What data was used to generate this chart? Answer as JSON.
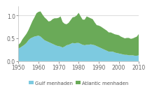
{
  "years": [
    1950,
    1951,
    1952,
    1953,
    1954,
    1955,
    1956,
    1957,
    1958,
    1959,
    1960,
    1961,
    1962,
    1963,
    1964,
    1965,
    1966,
    1967,
    1968,
    1969,
    1970,
    1971,
    1972,
    1973,
    1974,
    1975,
    1976,
    1977,
    1978,
    1979,
    1980,
    1981,
    1982,
    1983,
    1984,
    1985,
    1986,
    1987,
    1988,
    1989,
    1990,
    1991,
    1992,
    1993,
    1994,
    1995,
    1996,
    1997,
    1998,
    1999,
    2000,
    2001,
    2002,
    2003,
    2004,
    2005,
    2006,
    2007,
    2008,
    2009,
    2010
  ],
  "gulf": [
    0.28,
    0.3,
    0.33,
    0.36,
    0.4,
    0.46,
    0.5,
    0.52,
    0.54,
    0.55,
    0.56,
    0.54,
    0.5,
    0.46,
    0.44,
    0.42,
    0.4,
    0.38,
    0.36,
    0.34,
    0.33,
    0.32,
    0.3,
    0.32,
    0.35,
    0.36,
    0.38,
    0.4,
    0.39,
    0.4,
    0.4,
    0.38,
    0.36,
    0.35,
    0.36,
    0.36,
    0.37,
    0.36,
    0.35,
    0.33,
    0.31,
    0.29,
    0.27,
    0.25,
    0.23,
    0.21,
    0.21,
    0.21,
    0.19,
    0.18,
    0.17,
    0.16,
    0.15,
    0.14,
    0.14,
    0.13,
    0.13,
    0.13,
    0.12,
    0.12,
    0.13
  ],
  "atlantic": [
    0.08,
    0.1,
    0.15,
    0.18,
    0.2,
    0.22,
    0.28,
    0.36,
    0.42,
    0.5,
    0.52,
    0.55,
    0.52,
    0.5,
    0.48,
    0.45,
    0.48,
    0.54,
    0.58,
    0.6,
    0.62,
    0.66,
    0.56,
    0.5,
    0.46,
    0.48,
    0.52,
    0.56,
    0.58,
    0.6,
    0.66,
    0.6,
    0.55,
    0.56,
    0.62,
    0.6,
    0.57,
    0.56,
    0.5,
    0.46,
    0.47,
    0.47,
    0.46,
    0.45,
    0.44,
    0.42,
    0.42,
    0.4,
    0.4,
    0.4,
    0.4,
    0.38,
    0.37,
    0.36,
    0.37,
    0.38,
    0.36,
    0.37,
    0.4,
    0.42,
    0.47
  ],
  "gulf_color": "#7dcae0",
  "atlantic_color": "#6aaa58",
  "background_color": "#ffffff",
  "xlim": [
    1950,
    2010
  ],
  "ylim": [
    0,
    1.2
  ],
  "yticks": [
    0,
    0.5,
    1.0
  ],
  "xticks": [
    1950,
    1960,
    1970,
    1980,
    1990,
    2000,
    2010
  ],
  "gulf_label": "Gulf menhaden",
  "atlantic_label": "Atlantic menhaden",
  "tick_fontsize": 5.5,
  "legend_fontsize": 5.0
}
